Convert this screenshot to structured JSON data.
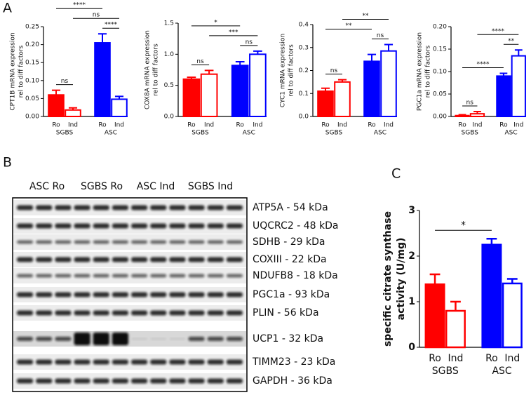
{
  "panels": [
    "A",
    "B",
    "C"
  ],
  "chart_data": [
    {
      "type": "bar",
      "ylabel": [
        "CPT1B mRNA expression",
        "rel to diff factors"
      ],
      "categories": [
        "Ro",
        "Ind",
        "Ro",
        "Ind"
      ],
      "groups": [
        "SGBS",
        "ASC"
      ],
      "values": [
        0.06,
        0.018,
        0.205,
        0.048
      ],
      "errors": [
        0.013,
        0.006,
        0.025,
        0.008
      ],
      "colors": [
        "#ff0000",
        "#ff0000",
        "#0000ff",
        "#0000ff"
      ],
      "filled": [
        true,
        false,
        true,
        false
      ],
      "ylim": [
        0,
        0.25
      ],
      "yticks": [
        {
          "value": 0,
          "label": "0.00"
        },
        0.05,
        {
          "value": 0.1,
          "label": "0.10"
        },
        0.15,
        {
          "value": 0.2,
          "label": "0.20"
        },
        0.25
      ],
      "annotations": [
        {
          "text": "ns",
          "between": [
            0,
            1
          ]
        },
        {
          "text": "****",
          "between": [
            2,
            3
          ]
        },
        {
          "text": "ns",
          "between": [
            1,
            3
          ]
        },
        {
          "text": "****",
          "between": [
            0,
            2
          ]
        }
      ]
    },
    {
      "type": "bar",
      "ylabel": [
        "COX8A mRNA expression",
        "rel to diff factors"
      ],
      "categories": [
        "Ro",
        "Ind",
        "Ro",
        "Ind"
      ],
      "groups": [
        "SGBS",
        "ASC"
      ],
      "values": [
        0.6,
        0.68,
        0.82,
        1.0
      ],
      "errors": [
        0.03,
        0.06,
        0.06,
        0.05
      ],
      "colors": [
        "#ff0000",
        "#ff0000",
        "#0000ff",
        "#0000ff"
      ],
      "filled": [
        true,
        false,
        true,
        false
      ],
      "ylim": [
        0,
        1.5
      ],
      "yticks": [
        {
          "value": 0,
          "label": "0.0"
        },
        0.5,
        {
          "value": 1,
          "label": "1.0"
        },
        1.5
      ],
      "annotations": [
        {
          "text": "ns",
          "between": [
            0,
            1
          ]
        },
        {
          "text": "ns",
          "between": [
            2,
            3
          ]
        },
        {
          "text": "***",
          "between": [
            1,
            3
          ]
        },
        {
          "text": "*",
          "between": [
            0,
            2
          ]
        }
      ]
    },
    {
      "type": "bar",
      "ylabel": [
        "CYC1 mRNA expression",
        "rel to diff factors"
      ],
      "categories": [
        "Ro",
        "Ind",
        "Ro",
        "Ind"
      ],
      "groups": [
        "SGBS",
        "ASC"
      ],
      "values": [
        0.11,
        0.15,
        0.24,
        0.285
      ],
      "errors": [
        0.013,
        0.01,
        0.03,
        0.028
      ],
      "colors": [
        "#ff0000",
        "#ff0000",
        "#0000ff",
        "#0000ff"
      ],
      "filled": [
        true,
        false,
        true,
        false
      ],
      "ylim": [
        0,
        0.4
      ],
      "yticks": [
        {
          "value": 0,
          "label": "0.0"
        },
        0.1,
        0.2,
        0.3,
        0.4
      ],
      "annotations": [
        {
          "text": "ns",
          "between": [
            0,
            1
          ]
        },
        {
          "text": "ns",
          "between": [
            2,
            3
          ]
        },
        {
          "text": "**",
          "between": [
            0,
            2
          ]
        },
        {
          "text": "**",
          "between": [
            1,
            3
          ]
        }
      ]
    },
    {
      "type": "bar",
      "ylabel": [
        "PGC1a mRNA expression",
        "rel to diff factors"
      ],
      "categories": [
        "Ro",
        "Ind",
        "Ro",
        "Ind"
      ],
      "groups": [
        "SGBS",
        "ASC"
      ],
      "values": [
        0.002,
        0.006,
        0.09,
        0.135
      ],
      "errors": [
        0.002,
        0.005,
        0.006,
        0.013
      ],
      "colors": [
        "#ff0000",
        "#ff0000",
        "#0000ff",
        "#0000ff"
      ],
      "filled": [
        true,
        false,
        true,
        false
      ],
      "ylim": [
        0,
        0.2
      ],
      "yticks": [
        {
          "value": 0,
          "label": "0.00"
        },
        0.05,
        {
          "value": 0.1,
          "label": "0.10"
        },
        0.15,
        {
          "value": 0.2,
          "label": "0.20"
        }
      ],
      "annotations": [
        {
          "text": "ns",
          "between": [
            0,
            1
          ]
        },
        {
          "text": "****",
          "between": [
            0,
            2
          ]
        },
        {
          "text": "**",
          "between": [
            2,
            3
          ]
        },
        {
          "text": "****",
          "between": [
            1,
            3
          ]
        }
      ]
    },
    {
      "type": "bar",
      "ylabel": [
        "specific citrate synthase",
        "activity (U/mg)"
      ],
      "categories": [
        "Ro",
        "Ind",
        "Ro",
        "Ind"
      ],
      "groups": [
        "SGBS",
        "ASC"
      ],
      "values": [
        1.38,
        0.8,
        2.25,
        1.4
      ],
      "errors": [
        0.22,
        0.2,
        0.13,
        0.1
      ],
      "colors": [
        "#ff0000",
        "#ff0000",
        "#0000ff",
        "#0000ff"
      ],
      "filled": [
        true,
        false,
        true,
        false
      ],
      "ylim": [
        0,
        3
      ],
      "yticks": [
        0,
        1,
        2,
        3
      ],
      "annotations": [
        {
          "text": "*",
          "between": [
            0,
            2
          ]
        }
      ]
    }
  ],
  "blot": {
    "groups": [
      "ASC Ro",
      "SGBS Ro",
      "ASC Ind",
      "SGBS Ind"
    ],
    "bands": [
      "ATP5A - 54 kDa",
      "UQCRC2 - 48 kDa",
      "SDHB - 29 kDa",
      "COXIII - 22 kDa",
      "NDUFB8 - 18 kDa",
      "PGC1a - 93 kDa",
      "PLIN - 56 kDa",
      "UCP1 - 32 kDa",
      "TIMM23 - 23 kDa",
      "GAPDH - 36 kDa"
    ]
  }
}
